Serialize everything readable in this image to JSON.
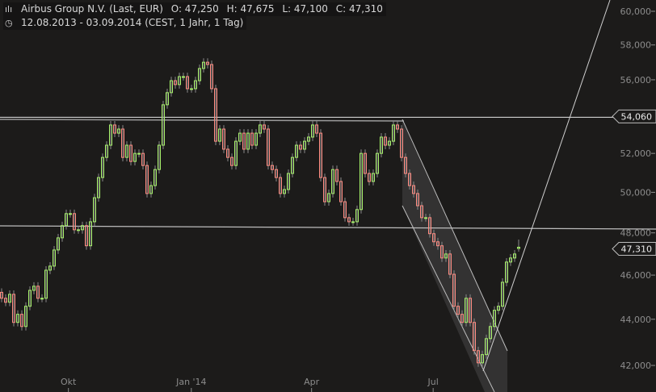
{
  "header": {
    "title": "Airbus Group N.V. (Last, EUR)",
    "open": "O: 47,250",
    "high": "H: 47,675",
    "low": "L: 47,100",
    "close": "C: 47,310",
    "range": "12.08.2013 - 03.09.2014 (CEST, 1 Jahr, 1 Tag)",
    "icons": [
      "chart-settings-icon",
      "clock-icon"
    ]
  },
  "chart_data": {
    "type": "candlestick",
    "start_date": "2013-08-12",
    "end_date": "2014-09-03",
    "y_scale": "log",
    "ylim": [
      41800,
      60500
    ],
    "y_ticks": [
      {
        "value": 60000,
        "label": "60,000"
      },
      {
        "value": 58000,
        "label": "58,000"
      },
      {
        "value": 56000,
        "label": "56,000"
      },
      {
        "value": 52000,
        "label": "52,000"
      },
      {
        "value": 50000,
        "label": "50,000"
      },
      {
        "value": 48000,
        "label": "48,000"
      },
      {
        "value": 46000,
        "label": "46,000"
      },
      {
        "value": 44000,
        "label": "44,000"
      },
      {
        "value": 42000,
        "label": "42,000"
      }
    ],
    "x_ticks": [
      {
        "date": "2013-10-01",
        "label": "Okt"
      },
      {
        "date": "2014-01-01",
        "label": "Jan '14"
      },
      {
        "date": "2014-04-01",
        "label": "Apr"
      },
      {
        "date": "2014-07-01",
        "label": "Jul"
      }
    ],
    "price_tags": [
      {
        "value": 54060,
        "label": "54,060"
      },
      {
        "value": 47310,
        "label": "47,310"
      }
    ],
    "horizontal_levels": [
      54060,
      48300
    ],
    "up_color": "#a6f06a",
    "down_color": "#ff8a80",
    "last": {
      "open": 47250,
      "high": 47675,
      "low": 47100,
      "close": 47310
    },
    "closes": [
      44940,
      44760,
      45120,
      43860,
      44220,
      43680,
      44580,
      45300,
      45490,
      44940,
      44940,
      46230,
      46420,
      47180,
      47760,
      48350,
      48940,
      48940,
      48150,
      48150,
      48350,
      47380,
      48540,
      49730,
      50750,
      51790,
      52430,
      53510,
      53070,
      53290,
      51790,
      52430,
      51580,
      52000,
      52000,
      51370,
      49940,
      50340,
      51160,
      52430,
      54610,
      55280,
      55950,
      55730,
      56180,
      56180,
      55500,
      55500,
      55950,
      56640,
      57000,
      56870,
      55500,
      52640,
      53290,
      52220,
      51790,
      51370,
      52640,
      53070,
      52220,
      53070,
      52430,
      53070,
      53510,
      53290,
      51370,
      51160,
      50750,
      49940,
      50140,
      50960,
      51790,
      52430,
      52220,
      52640,
      52860,
      53510,
      53070,
      50750,
      49530,
      49940,
      51160,
      50550,
      49530,
      48740,
      48540,
      48540,
      49140,
      52000,
      50960,
      50550,
      50960,
      52000,
      52860,
      52430,
      52640,
      53510,
      53290,
      51790,
      50960,
      50340,
      49940,
      49330,
      48740,
      48740,
      47960,
      47570,
      47380,
      46800,
      46990,
      46040,
      44580,
      44220,
      43860,
      44940,
      43860,
      42630,
      42110,
      42460,
      43150,
      43680,
      44400,
      44580,
      45670,
      46610,
      46800,
      46990,
      47310
    ]
  }
}
